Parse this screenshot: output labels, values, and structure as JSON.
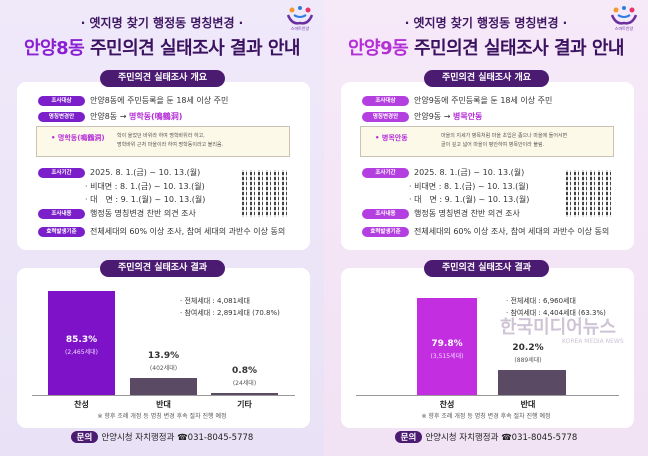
{
  "posters": [
    {
      "subtitle": "· 옛지명 찾기 행정동 명칭변경 ·",
      "title_highlight": "안양8동",
      "title_rest": " 주민의견 실태조사 결과 안내",
      "logo_text": "스마트안양",
      "overview_heading": "주민의견 실태조사 개요",
      "target_label": "조사대상",
      "target_text": "안양8동에 주민등록을 둔 18세 이상 주민",
      "proposal_label": "명칭변경안",
      "proposal_from": "안양8동 → ",
      "proposal_to": "명학동(鳴鶴洞)",
      "note_key": "• 명학동(鳴鶴洞)",
      "note_line1": "학이 울었던 바위라 하여 명학바위라 하고,",
      "note_line2": "명학바위 근처 마을이라 하여 명학동이라고 불리움.",
      "period_label": "조사기간",
      "period_text": "2025. 8. 1.(금) ~ 10. 13.(월)",
      "online_text": "· 비대면 : 8. 1.(금) ~ 10. 13.(월)",
      "offline_text": "· 대　면 : 9. 1.(월) ~ 10. 13.(월)",
      "content_label": "조사내용",
      "content_text": "행정동 명칭변경 찬반 의견 조사",
      "criteria_label": "효력발생기준",
      "criteria_text": "전체세대의 60% 이상 조사, 참여 세대의 과반수 이상 동의",
      "results_heading": "주민의견 실태조사 결과",
      "stat_total": "· 전체세대 : 4,081세대",
      "stat_participants": "· 참여세대 : 2,891세대 (70.8%)",
      "footnote": "※ 향후 조례 개정 등 명칭 변경 후속 절차 진행 예정",
      "contact_label": "문의",
      "contact_text": "안양시청 자치행정과 ☎031-8045-5778",
      "chart_data": {
        "type": "bar",
        "categories": [
          "찬성",
          "반대",
          "기타"
        ],
        "values": [
          85.3,
          13.9,
          0.8
        ],
        "value_labels": [
          "85.3%",
          "13.9%",
          "0.8%"
        ],
        "count_labels": [
          "(2,465세대)",
          "(402세대)",
          "(24세대)"
        ],
        "colors": [
          "#7d12c9",
          "#5a4a63",
          "#5a4a63"
        ],
        "ylim": [
          0,
          100
        ]
      }
    },
    {
      "subtitle": "· 옛지명 찾기 행정동 명칭변경 ·",
      "title_highlight": "안양9동",
      "title_rest": " 주민의견 실태조사 결과 안내",
      "logo_text": "스마트안양",
      "overview_heading": "주민의견 실태조사 개요",
      "target_label": "조사대상",
      "target_text": "안양9동에 주민등록을 둔 18세 이상 주민",
      "proposal_label": "명칭변경안",
      "proposal_from": "안양9동 → ",
      "proposal_to": "병목안동",
      "note_key": "• 병목안동",
      "note_line1": "마을의 지세가 병목처럼 마을 초입은 좁으나 마을에 들어서면",
      "note_line2": "골이 깊고 넓어 마을이 평안하여 병목안이라 불림.",
      "period_label": "조사기간",
      "period_text": "2025. 8. 1.(금) ~ 10. 13.(월)",
      "online_text": "· 비대면 : 8. 1.(금) ~ 10. 13.(월)",
      "offline_text": "· 대　면 : 9. 1.(월) ~ 10. 13.(월)",
      "content_label": "조사내용",
      "content_text": "행정동 명칭변경 찬반 의견 조사",
      "criteria_label": "효력발생기준",
      "criteria_text": "전체세대의 60% 이상 조사, 참여 세대의 과반수 이상 동의",
      "results_heading": "주민의견 실태조사 결과",
      "stat_total": "· 전체세대 : 6,960세대",
      "stat_participants": "· 참여세대 : 4,404세대 (63.3%)",
      "footnote": "※ 향후 조례 개정 등 명칭 변경 후속 절차 진행 예정",
      "contact_label": "문의",
      "contact_text": "안양시청 자치행정과 ☎031-8045-5778",
      "chart_data": {
        "type": "bar",
        "categories": [
          "찬성",
          "반대"
        ],
        "values": [
          79.8,
          20.2
        ],
        "value_labels": [
          "79.8%",
          "20.2%"
        ],
        "count_labels": [
          "(3,515세대)",
          "(889세대)"
        ],
        "colors": [
          "#c22ee0",
          "#5a4a63"
        ],
        "ylim": [
          0,
          100
        ]
      }
    }
  ],
  "watermark": {
    "text": "한국미디어뉴스",
    "subtext": "KOREA MEDIA NEWS"
  }
}
